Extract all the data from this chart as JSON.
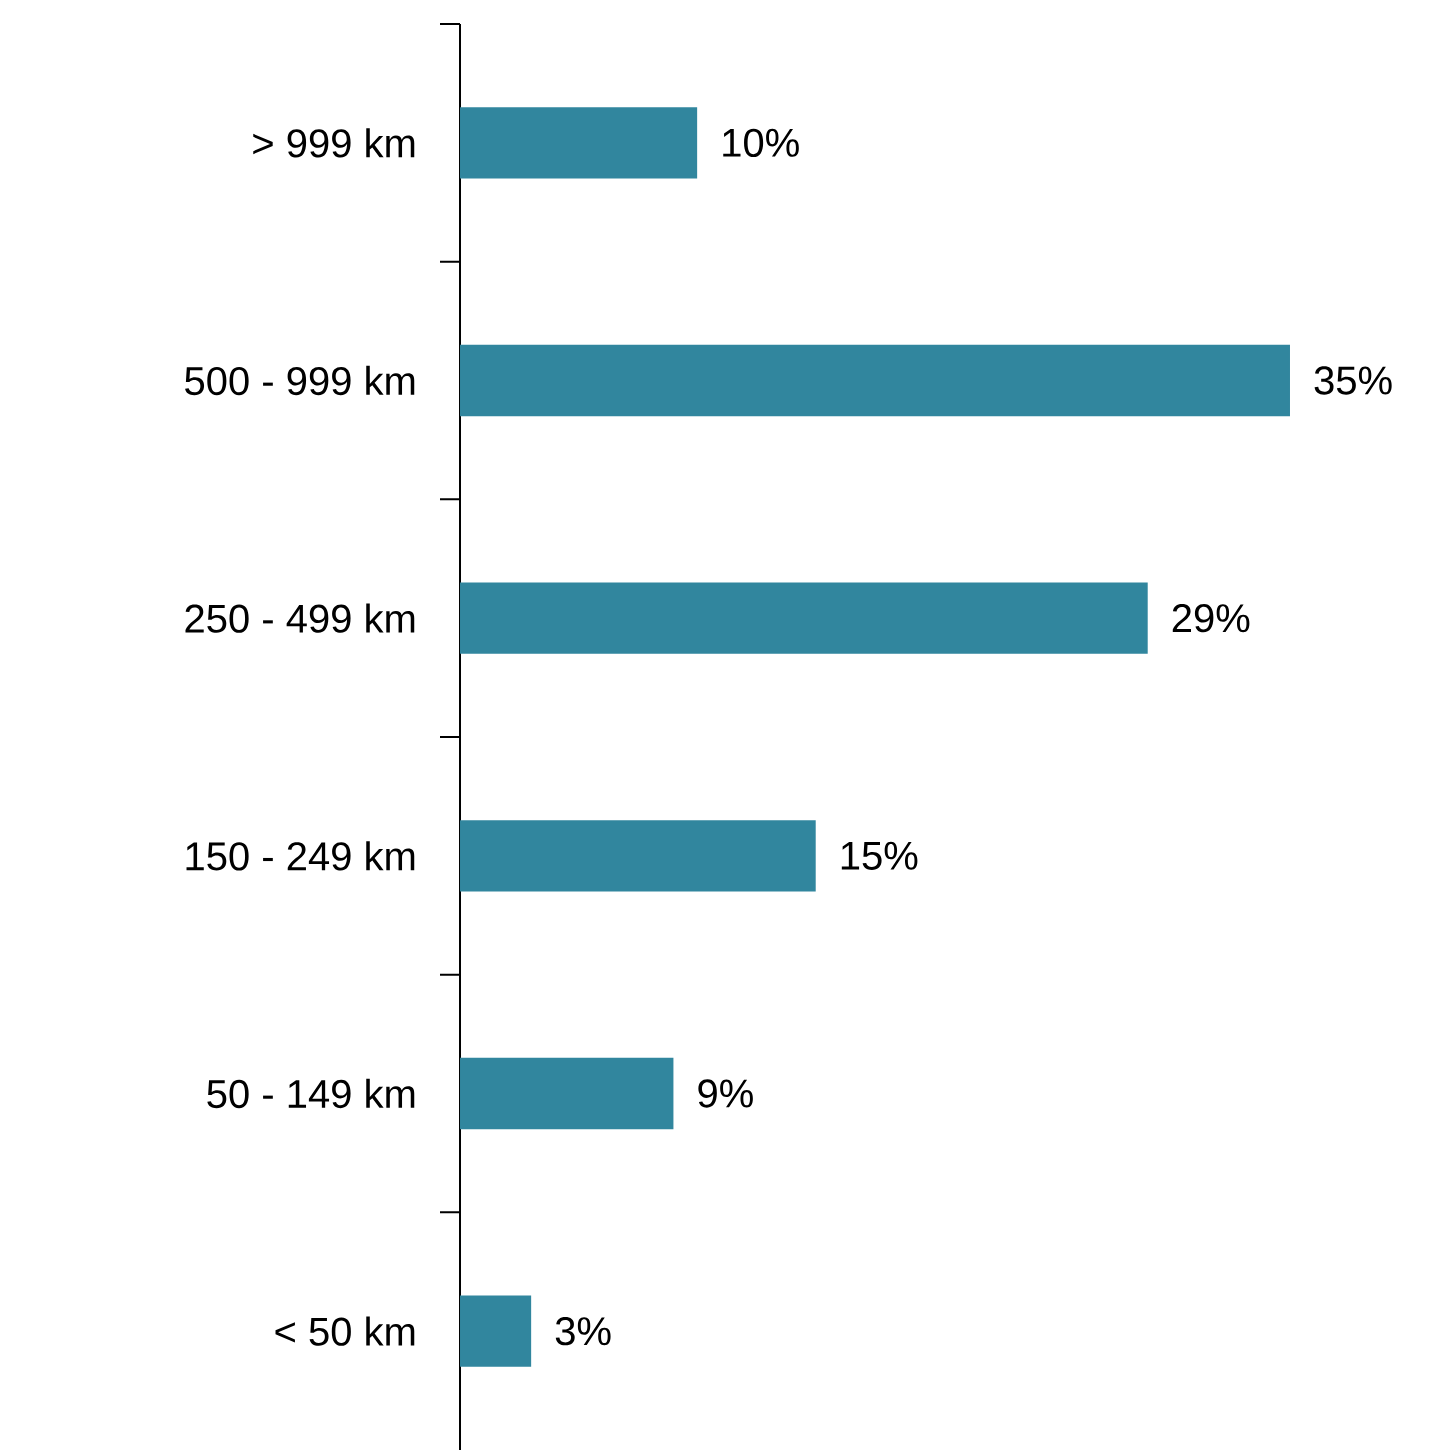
{
  "chart_data": {
    "type": "bar",
    "orientation": "horizontal",
    "categories": [
      "> 999 km",
      "500 - 999 km",
      "250 - 499 km",
      "150 - 249 km",
      "50 - 149 km",
      "< 50 km"
    ],
    "values": [
      10,
      35,
      29,
      15,
      9,
      3
    ],
    "value_labels": [
      "10%",
      "35%",
      "29%",
      "15%",
      "9%",
      "3%"
    ],
    "color": "#31869e"
  }
}
